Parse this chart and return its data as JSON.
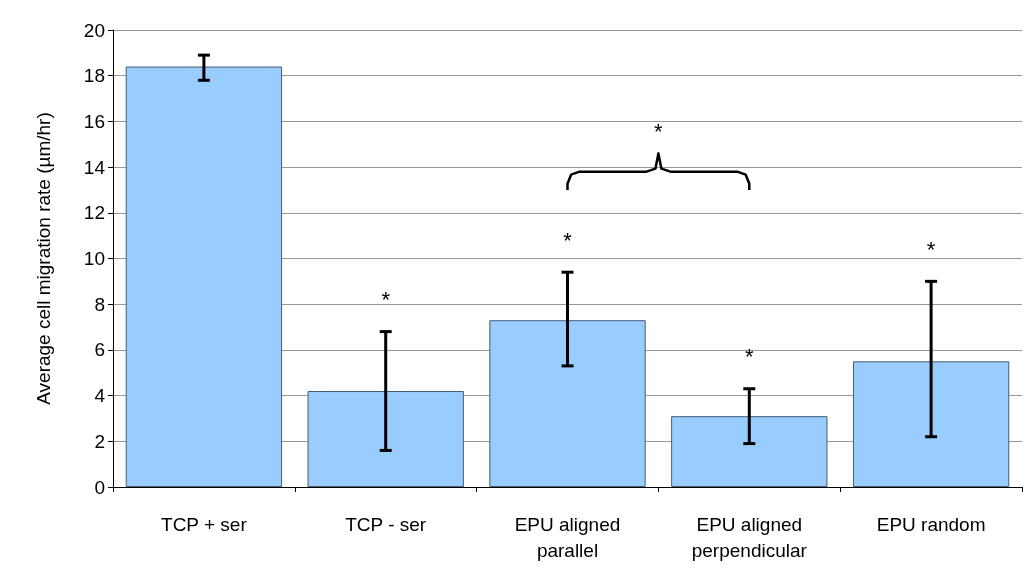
{
  "chart_data": {
    "type": "bar",
    "ylabel": "Average cell migration rate (µm/hr)",
    "categories": [
      "TCP + ser",
      "TCP - ser",
      "EPU aligned\nparallel",
      "EPU aligned\nperpendicular",
      "EPU random"
    ],
    "values": [
      18.4,
      4.2,
      7.3,
      3.1,
      5.5
    ],
    "errors": [
      [
        17.8,
        18.9
      ],
      [
        1.6,
        6.8
      ],
      [
        5.3,
        9.4
      ],
      [
        1.9,
        4.3
      ],
      [
        2.2,
        9.0
      ]
    ],
    "color": "#99ccff",
    "ylim": [
      0,
      20
    ],
    "yticks": [
      0,
      2,
      4,
      6,
      8,
      10,
      12,
      14,
      16,
      18,
      20
    ],
    "grid": "y",
    "annotations": [
      "*",
      "*",
      "*",
      "*",
      "*"
    ]
  }
}
